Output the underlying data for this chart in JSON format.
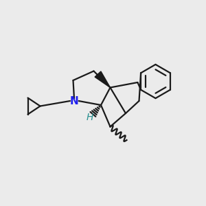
{
  "bg_color": "#ebebeb",
  "bond_color": "#1a1a1a",
  "N_color": "#2020ee",
  "H_color": "#2a9090",
  "lw": 1.6
}
